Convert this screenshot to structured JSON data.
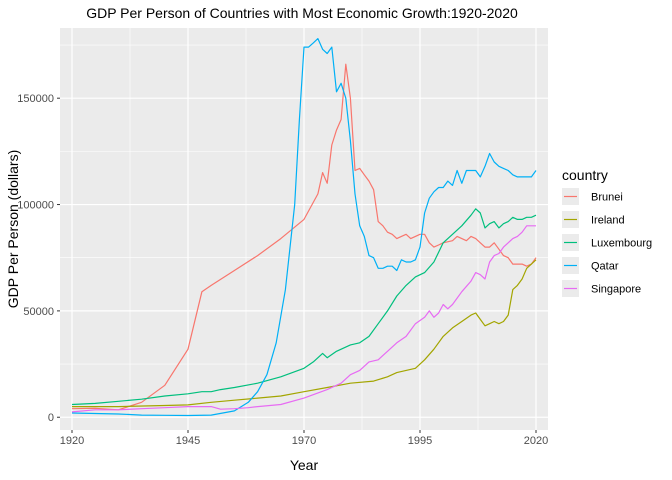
{
  "chart_data": {
    "type": "line",
    "title": "GDP Per Person of Countries with Most Economic Growth:1920-2020",
    "xlabel": "Year",
    "ylabel": "GDP Per Person (dollars)",
    "xlim": [
      1920,
      2020
    ],
    "ylim": [
      -6000,
      183000
    ],
    "x_ticks": [
      "1920",
      "1945",
      "1970",
      "1995",
      "2020"
    ],
    "y_ticks": [
      "0",
      "50000",
      "100000",
      "150000"
    ],
    "grid": true,
    "legend": {
      "title": "country",
      "position": "right"
    },
    "series": [
      {
        "name": "Brunei",
        "color": "#F8766D",
        "points": [
          [
            1920,
            4000
          ],
          [
            1925,
            4200
          ],
          [
            1930,
            3500
          ],
          [
            1935,
            7000
          ],
          [
            1940,
            15000
          ],
          [
            1945,
            32000
          ],
          [
            1948,
            59000
          ],
          [
            1950,
            62000
          ],
          [
            1955,
            69000
          ],
          [
            1960,
            76000
          ],
          [
            1965,
            84000
          ],
          [
            1970,
            93000
          ],
          [
            1973,
            105000
          ],
          [
            1974,
            115000
          ],
          [
            1975,
            110000
          ],
          [
            1976,
            128000
          ],
          [
            1977,
            135000
          ],
          [
            1978,
            140000
          ],
          [
            1979,
            166000
          ],
          [
            1980,
            150000
          ],
          [
            1981,
            116000
          ],
          [
            1982,
            117000
          ],
          [
            1983,
            114000
          ],
          [
            1984,
            111000
          ],
          [
            1985,
            107000
          ],
          [
            1986,
            92000
          ],
          [
            1987,
            90000
          ],
          [
            1988,
            87000
          ],
          [
            1989,
            86000
          ],
          [
            1990,
            84000
          ],
          [
            1991,
            85000
          ],
          [
            1992,
            86000
          ],
          [
            1993,
            84000
          ],
          [
            1994,
            85000
          ],
          [
            1995,
            86000
          ],
          [
            1996,
            86000
          ],
          [
            1997,
            82000
          ],
          [
            1998,
            80000
          ],
          [
            1999,
            81000
          ],
          [
            2000,
            82000
          ],
          [
            2002,
            83000
          ],
          [
            2003,
            85000
          ],
          [
            2004,
            84000
          ],
          [
            2005,
            83000
          ],
          [
            2006,
            85000
          ],
          [
            2007,
            84000
          ],
          [
            2008,
            82000
          ],
          [
            2009,
            80000
          ],
          [
            2010,
            80000
          ],
          [
            2011,
            82000
          ],
          [
            2012,
            79000
          ],
          [
            2013,
            76000
          ],
          [
            2014,
            75000
          ],
          [
            2015,
            72000
          ],
          [
            2016,
            72000
          ],
          [
            2017,
            72000
          ],
          [
            2018,
            71000
          ],
          [
            2019,
            72000
          ],
          [
            2020,
            75000
          ]
        ]
      },
      {
        "name": "Ireland",
        "color": "#A3A500",
        "points": [
          [
            1920,
            5000
          ],
          [
            1930,
            5000
          ],
          [
            1940,
            5500
          ],
          [
            1945,
            5800
          ],
          [
            1950,
            7000
          ],
          [
            1955,
            8000
          ],
          [
            1960,
            9000
          ],
          [
            1965,
            10000
          ],
          [
            1970,
            12000
          ],
          [
            1975,
            14000
          ],
          [
            1980,
            16000
          ],
          [
            1985,
            17000
          ],
          [
            1988,
            19000
          ],
          [
            1990,
            21000
          ],
          [
            1992,
            22000
          ],
          [
            1994,
            23000
          ],
          [
            1996,
            27000
          ],
          [
            1998,
            32000
          ],
          [
            2000,
            38000
          ],
          [
            2002,
            42000
          ],
          [
            2004,
            45000
          ],
          [
            2006,
            48000
          ],
          [
            2007,
            49000
          ],
          [
            2008,
            46000
          ],
          [
            2009,
            43000
          ],
          [
            2010,
            44000
          ],
          [
            2011,
            45000
          ],
          [
            2012,
            44000
          ],
          [
            2013,
            45000
          ],
          [
            2014,
            48000
          ],
          [
            2015,
            60000
          ],
          [
            2016,
            62000
          ],
          [
            2017,
            65000
          ],
          [
            2018,
            70000
          ],
          [
            2019,
            72000
          ],
          [
            2020,
            74000
          ]
        ]
      },
      {
        "name": "Luxembourg",
        "color": "#00BF7D",
        "points": [
          [
            1920,
            6000
          ],
          [
            1925,
            6500
          ],
          [
            1930,
            7500
          ],
          [
            1935,
            8500
          ],
          [
            1940,
            10000
          ],
          [
            1945,
            11000
          ],
          [
            1948,
            12000
          ],
          [
            1950,
            12000
          ],
          [
            1952,
            13000
          ],
          [
            1955,
            14000
          ],
          [
            1960,
            16000
          ],
          [
            1965,
            19000
          ],
          [
            1970,
            23000
          ],
          [
            1972,
            26000
          ],
          [
            1974,
            30000
          ],
          [
            1975,
            28000
          ],
          [
            1977,
            31000
          ],
          [
            1980,
            34000
          ],
          [
            1982,
            35000
          ],
          [
            1984,
            38000
          ],
          [
            1986,
            44000
          ],
          [
            1988,
            50000
          ],
          [
            1990,
            57000
          ],
          [
            1992,
            62000
          ],
          [
            1994,
            66000
          ],
          [
            1996,
            68000
          ],
          [
            1998,
            73000
          ],
          [
            2000,
            82000
          ],
          [
            2002,
            86000
          ],
          [
            2004,
            90000
          ],
          [
            2006,
            95000
          ],
          [
            2007,
            98000
          ],
          [
            2008,
            96000
          ],
          [
            2009,
            89000
          ],
          [
            2010,
            91000
          ],
          [
            2011,
            92000
          ],
          [
            2012,
            89000
          ],
          [
            2013,
            91000
          ],
          [
            2014,
            92000
          ],
          [
            2015,
            94000
          ],
          [
            2016,
            93000
          ],
          [
            2017,
            93000
          ],
          [
            2018,
            94000
          ],
          [
            2019,
            94000
          ],
          [
            2020,
            95000
          ]
        ]
      },
      {
        "name": "Qatar",
        "color": "#00B0F6",
        "points": [
          [
            1920,
            2000
          ],
          [
            1930,
            1500
          ],
          [
            1935,
            1000
          ],
          [
            1940,
            900
          ],
          [
            1945,
            800
          ],
          [
            1950,
            1000
          ],
          [
            1955,
            3000
          ],
          [
            1958,
            7000
          ],
          [
            1960,
            12000
          ],
          [
            1962,
            20000
          ],
          [
            1964,
            35000
          ],
          [
            1966,
            60000
          ],
          [
            1968,
            100000
          ],
          [
            1969,
            140000
          ],
          [
            1970,
            174000
          ],
          [
            1971,
            174000
          ],
          [
            1972,
            176000
          ],
          [
            1973,
            178000
          ],
          [
            1974,
            173000
          ],
          [
            1975,
            171000
          ],
          [
            1976,
            174000
          ],
          [
            1977,
            153000
          ],
          [
            1978,
            157000
          ],
          [
            1979,
            150000
          ],
          [
            1980,
            130000
          ],
          [
            1981,
            105000
          ],
          [
            1982,
            90000
          ],
          [
            1983,
            85000
          ],
          [
            1984,
            76000
          ],
          [
            1985,
            75000
          ],
          [
            1986,
            70000
          ],
          [
            1987,
            70000
          ],
          [
            1988,
            71000
          ],
          [
            1989,
            71000
          ],
          [
            1990,
            69000
          ],
          [
            1991,
            74000
          ],
          [
            1992,
            73000
          ],
          [
            1993,
            73000
          ],
          [
            1994,
            74000
          ],
          [
            1995,
            80000
          ],
          [
            1996,
            96000
          ],
          [
            1997,
            103000
          ],
          [
            1998,
            106000
          ],
          [
            1999,
            108000
          ],
          [
            2000,
            108000
          ],
          [
            2001,
            111000
          ],
          [
            2002,
            109000
          ],
          [
            2003,
            116000
          ],
          [
            2004,
            110000
          ],
          [
            2005,
            116000
          ],
          [
            2006,
            116000
          ],
          [
            2007,
            116000
          ],
          [
            2008,
            113000
          ],
          [
            2009,
            118000
          ],
          [
            2010,
            124000
          ],
          [
            2011,
            120000
          ],
          [
            2012,
            118000
          ],
          [
            2013,
            117000
          ],
          [
            2014,
            116000
          ],
          [
            2015,
            114000
          ],
          [
            2016,
            113000
          ],
          [
            2017,
            113000
          ],
          [
            2018,
            113000
          ],
          [
            2019,
            113000
          ],
          [
            2020,
            116000
          ]
        ]
      },
      {
        "name": "Singapore",
        "color": "#E76BF3",
        "points": [
          [
            1920,
            2500
          ],
          [
            1925,
            3500
          ],
          [
            1930,
            3500
          ],
          [
            1935,
            4000
          ],
          [
            1940,
            4500
          ],
          [
            1945,
            5000
          ],
          [
            1950,
            5000
          ],
          [
            1952,
            3800
          ],
          [
            1955,
            4000
          ],
          [
            1958,
            4500
          ],
          [
            1960,
            5000
          ],
          [
            1965,
            6000
          ],
          [
            1970,
            9000
          ],
          [
            1975,
            13000
          ],
          [
            1978,
            16000
          ],
          [
            1980,
            20000
          ],
          [
            1982,
            22000
          ],
          [
            1984,
            26000
          ],
          [
            1986,
            27000
          ],
          [
            1988,
            31000
          ],
          [
            1990,
            35000
          ],
          [
            1992,
            38000
          ],
          [
            1994,
            44000
          ],
          [
            1996,
            47000
          ],
          [
            1997,
            50000
          ],
          [
            1998,
            47000
          ],
          [
            1999,
            49000
          ],
          [
            2000,
            53000
          ],
          [
            2001,
            51000
          ],
          [
            2002,
            53000
          ],
          [
            2004,
            59000
          ],
          [
            2006,
            64000
          ],
          [
            2007,
            68000
          ],
          [
            2008,
            67000
          ],
          [
            2009,
            65000
          ],
          [
            2010,
            73000
          ],
          [
            2011,
            76000
          ],
          [
            2012,
            77000
          ],
          [
            2013,
            80000
          ],
          [
            2014,
            82000
          ],
          [
            2015,
            84000
          ],
          [
            2016,
            85000
          ],
          [
            2017,
            87000
          ],
          [
            2018,
            90000
          ],
          [
            2019,
            90000
          ],
          [
            2020,
            90000
          ]
        ]
      }
    ]
  }
}
